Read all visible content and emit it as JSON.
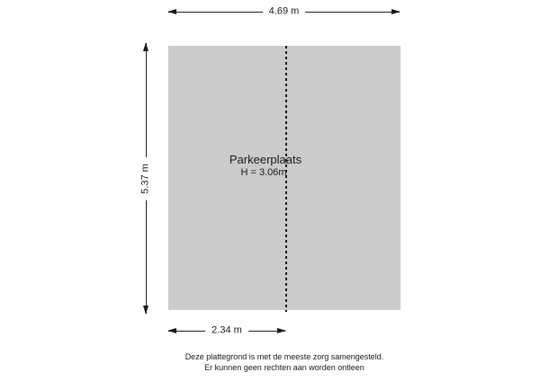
{
  "floorplan": {
    "room_label": "Parkeerplaats",
    "height_label": "H = 3.06m",
    "dimensions": {
      "top": "4.69 m",
      "left": "5.37 m",
      "bottom": "2.34 m"
    },
    "colors": {
      "room_fill": "#cbcbcb",
      "line": "#1a1a1a",
      "background": "#ffffff"
    },
    "icons": {
      "arrow_left": "css-triangle-left",
      "arrow_right": "css-triangle-right",
      "arrow_up": "css-triangle-up",
      "arrow_down": "css-triangle-down",
      "divider": "dashed-vertical-line"
    }
  },
  "footer": {
    "line1": "Deze plattegrond is met de meeste zorg samengesteld.",
    "line2": "Er kunnen geen rechten aan worden ontleen"
  }
}
